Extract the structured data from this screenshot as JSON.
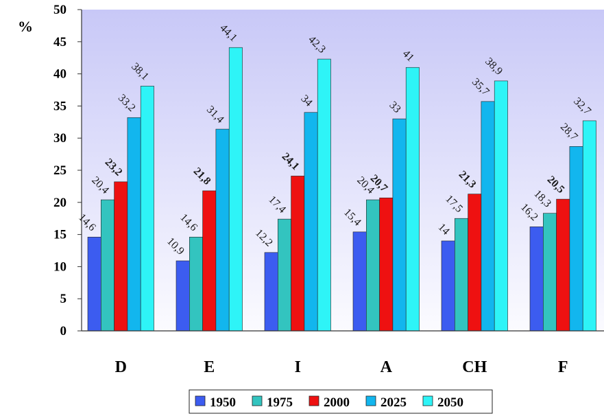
{
  "chart_data": {
    "type": "bar",
    "unit_label": "%",
    "categories": [
      "D",
      "E",
      "I",
      "A",
      "CH",
      "F"
    ],
    "series": [
      {
        "name": "1950",
        "color": "#3c5cf0",
        "values_text": [
          "14,6",
          "10,9",
          "12,2",
          "15,4",
          "14",
          "16,2"
        ],
        "values": [
          14.6,
          10.9,
          12.2,
          15.4,
          14,
          16.2
        ]
      },
      {
        "name": "1975",
        "color": "#33c4bf",
        "values_text": [
          "20,4",
          "14,6",
          "17,4",
          "20,4",
          "17,5",
          "18,3"
        ],
        "values": [
          20.4,
          14.6,
          17.4,
          20.4,
          17.5,
          18.3
        ]
      },
      {
        "name": "2000",
        "color": "#ee1111",
        "values_text": [
          "23,2",
          "21,8",
          "24,1",
          "20,7",
          "21,3",
          "20,5"
        ],
        "values": [
          23.2,
          21.8,
          24.1,
          20.7,
          21.3,
          20.5
        ]
      },
      {
        "name": "2025",
        "color": "#12b6ee",
        "values_text": [
          "33,2",
          "31,4",
          "34",
          "33",
          "35,7",
          "28,7"
        ],
        "values": [
          33.2,
          31.4,
          34,
          33,
          35.7,
          28.7
        ]
      },
      {
        "name": "2050",
        "color": "#2ef4f7",
        "values_text": [
          "38,1",
          "44,1",
          "42,3",
          "41",
          "38,9",
          "32,7"
        ],
        "values": [
          38.1,
          44.1,
          42.3,
          41,
          38.9,
          32.7
        ]
      }
    ],
    "bold_label_series": [
      "2000"
    ],
    "ylim": [
      0,
      50
    ],
    "yticks": [
      "0",
      "5",
      "10",
      "15",
      "20",
      "25",
      "30",
      "35",
      "40",
      "45",
      "50"
    ],
    "legend": "bottom",
    "grid": false,
    "plot_background": "gradient lavender"
  }
}
